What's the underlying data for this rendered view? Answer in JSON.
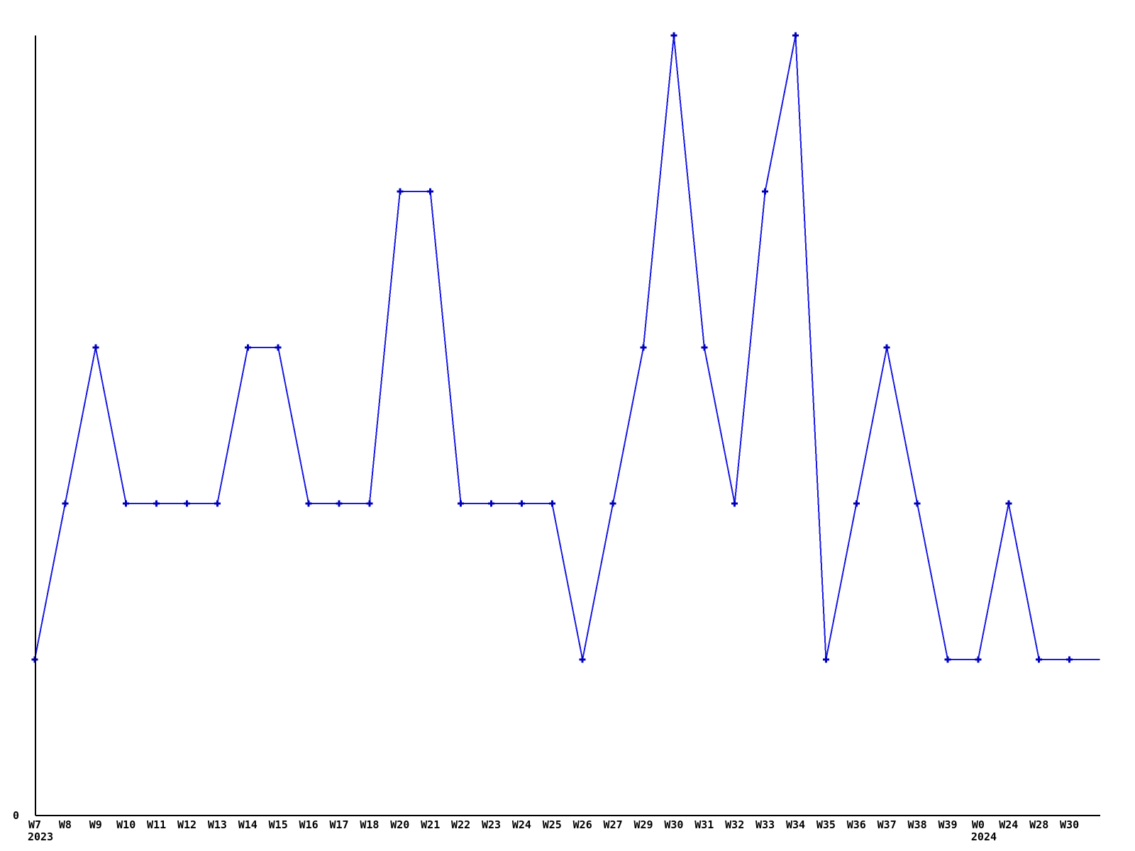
{
  "chart_data": {
    "type": "line",
    "title": "",
    "xlabel": "",
    "ylabel": "",
    "categories": [
      "W7",
      "W8",
      "W9",
      "W10",
      "W11",
      "W12",
      "W13",
      "W14",
      "W15",
      "W16",
      "W17",
      "W18",
      "W20",
      "W21",
      "W22",
      "W23",
      "W24",
      "W25",
      "W26",
      "W27",
      "W29",
      "W30",
      "W31",
      "W32",
      "W33",
      "W34",
      "W35",
      "W36",
      "W37",
      "W38",
      "W39",
      "W0",
      "W24",
      "W28",
      "W30"
    ],
    "values": [
      1,
      2,
      3,
      2,
      2,
      2,
      2,
      3,
      3,
      2,
      2,
      2,
      4,
      4,
      2,
      2,
      2,
      2,
      1,
      2,
      3,
      5,
      3,
      2,
      4,
      5,
      1,
      2,
      3,
      2,
      1,
      1,
      2,
      1,
      1
    ],
    "tail_value": 1,
    "year_labels": [
      {
        "index": 0,
        "text": "2023"
      },
      {
        "index": 31,
        "text": "2024"
      }
    ],
    "y_axis_tick_labels": [
      "0"
    ],
    "ylim": [
      0,
      5
    ],
    "grid": false,
    "legend": false,
    "marker_style": "plus",
    "colors": {
      "line": "#1a1ae0",
      "marker": "#0000bb",
      "axis": "#000000",
      "text": "#000000",
      "background": "#ffffff"
    }
  }
}
